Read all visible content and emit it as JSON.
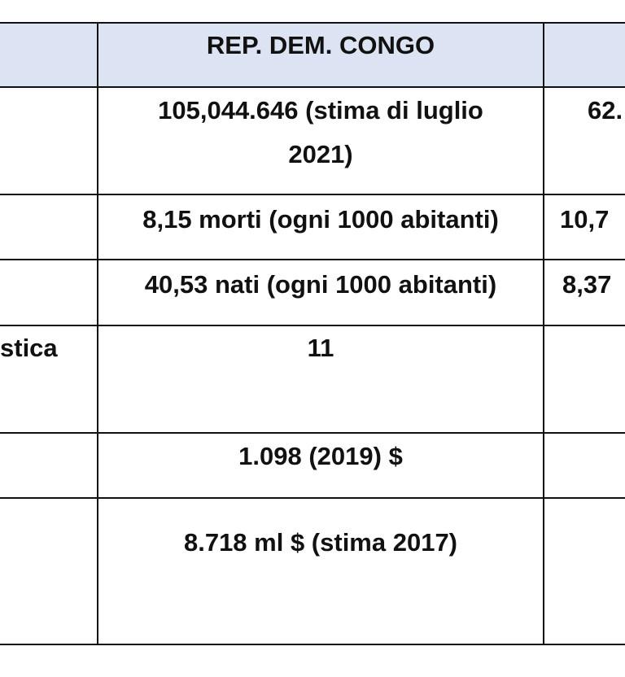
{
  "table": {
    "header": {
      "col2": "REP. DEM. CONGO"
    },
    "rows": [
      {
        "col1": "",
        "col2_line1": "105,044.646 (stima di luglio",
        "col2_line2": "2021)",
        "col3": "62."
      },
      {
        "col1": "",
        "col2": "8,15 morti (ogni 1000 abitanti)",
        "col3": "10,7"
      },
      {
        "col1": "",
        "col2": "40,53 nati (ogni 1000 abitanti)",
        "col3": "8,37"
      },
      {
        "col1": "stica",
        "col2": "11",
        "col3": ""
      },
      {
        "col1": "",
        "col2": "1.098 (2019) $",
        "col3": ""
      },
      {
        "col1": "",
        "col2": "8.718 ml $ (stima 2017)",
        "col3": ""
      }
    ]
  }
}
